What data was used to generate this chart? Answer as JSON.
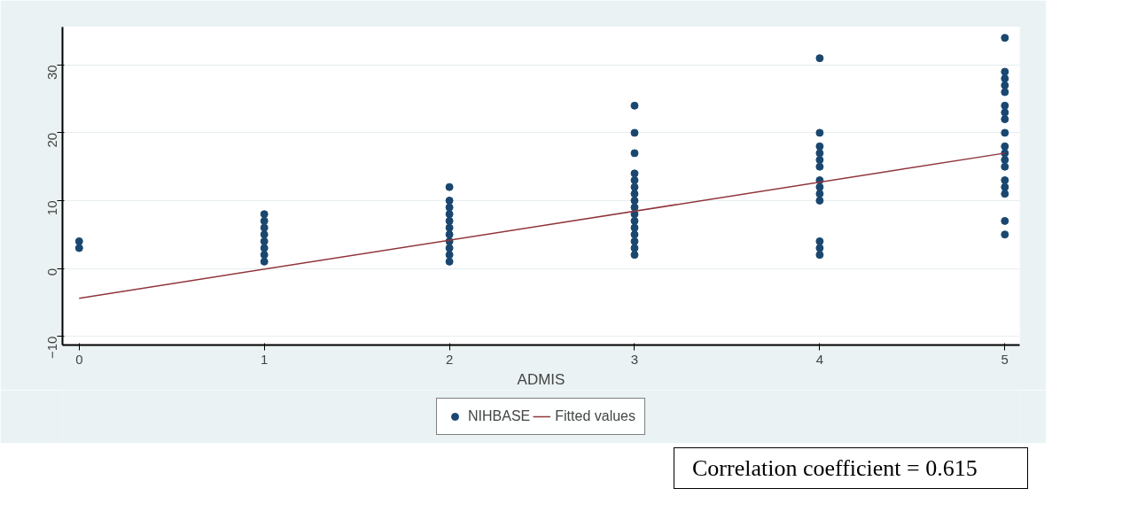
{
  "chart_data": {
    "type": "scatter",
    "xlabel": "ADMIS",
    "xlim": [
      -0.09,
      5.08
    ],
    "ylim": [
      -11.3,
      35.6
    ],
    "xticks": [
      0,
      1,
      2,
      3,
      4,
      5
    ],
    "yticks": [
      -10,
      0,
      10,
      20,
      30
    ],
    "grid": "y",
    "legend": "bottom",
    "series": [
      {
        "name": "NIHBASE",
        "color": "#1a476f",
        "marker": "circle",
        "x": [
          0,
          0,
          1,
          1,
          1,
          1,
          1,
          1,
          1,
          1,
          2,
          2,
          2,
          2,
          2,
          2,
          2,
          2,
          2,
          2,
          2,
          3,
          3,
          3,
          3,
          3,
          3,
          3,
          3,
          3,
          3,
          3,
          3,
          3,
          3,
          3,
          3,
          4,
          4,
          4,
          4,
          4,
          4,
          4,
          4,
          4,
          4,
          4,
          4,
          4,
          5,
          5,
          5,
          5,
          5,
          5,
          5,
          5,
          5,
          5,
          5,
          5,
          5,
          5,
          5,
          5,
          5,
          5
        ],
        "values": [
          3,
          4,
          1,
          2,
          3,
          4,
          5,
          6,
          7,
          8,
          1,
          2,
          3,
          4,
          5,
          6,
          7,
          8,
          9,
          10,
          12,
          2,
          3,
          4,
          5,
          6,
          7,
          8,
          9,
          10,
          11,
          12,
          13,
          14,
          17,
          20,
          24,
          2,
          3,
          4,
          10,
          11,
          12,
          13,
          15,
          16,
          17,
          18,
          20,
          31,
          5,
          7,
          11,
          12,
          13,
          15,
          16,
          17,
          18,
          20,
          22,
          23,
          24,
          26,
          27,
          28,
          29,
          34
        ]
      },
      {
        "name": "Fitted values",
        "color": "#90353b",
        "type": "line",
        "x": [
          0,
          5
        ],
        "values": [
          -4.4,
          17.0
        ]
      }
    ],
    "annotations": [
      "Correlation coefficient = 0.615"
    ]
  }
}
